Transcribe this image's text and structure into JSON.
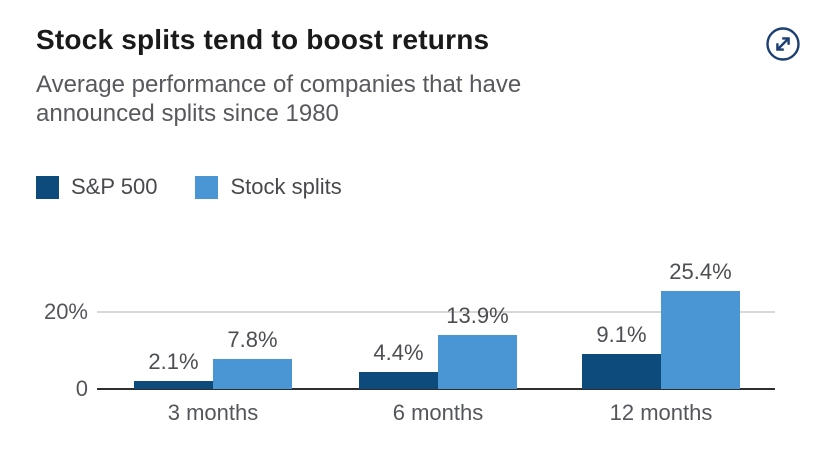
{
  "header": {
    "title": "Stock splits tend to boost returns",
    "subtitle_lines": [
      "Average performance of companies that have",
      "announced splits since 1980"
    ]
  },
  "legend": {
    "items": [
      {
        "label": "S&P 500",
        "color": "#0d4b7d"
      },
      {
        "label": "Stock splits",
        "color": "#4a96d4"
      }
    ]
  },
  "chart_data": {
    "type": "bar",
    "title": "Stock splits tend to boost returns",
    "subtitle": "Average performance of companies that have announced splits since 1980",
    "categories": [
      "3 months",
      "6 months",
      "12 months"
    ],
    "series": [
      {
        "name": "S&P 500",
        "color": "#0d4b7d",
        "values": [
          2.1,
          4.4,
          9.1
        ],
        "value_labels": [
          "2.1%",
          "4.4%",
          "9.1%"
        ]
      },
      {
        "name": "Stock splits",
        "color": "#4a96d4",
        "values": [
          7.8,
          13.9,
          25.4
        ],
        "value_labels": [
          "7.8%",
          "13.9%",
          "25.4%"
        ]
      }
    ],
    "unit": "%",
    "xlabel": "",
    "ylabel": "",
    "ylim": [
      0,
      28
    ],
    "yticks": [
      {
        "value": 0,
        "label": "0"
      },
      {
        "value": 20,
        "label": "20%"
      }
    ],
    "grid": "single horizontal gridline at 20%, dark baseline at 0",
    "legend_position": "top-left",
    "value_labels_shown": true
  },
  "colors": {
    "title": "#1a1a1a",
    "subtitle": "#58595d",
    "axis_labels": "#54565b",
    "value_labels": "#4c4e52",
    "gridline": "#d8d8d8",
    "axis_line": "#2e2e2e",
    "icon": "#1d3f72",
    "background": "#ffffff"
  }
}
